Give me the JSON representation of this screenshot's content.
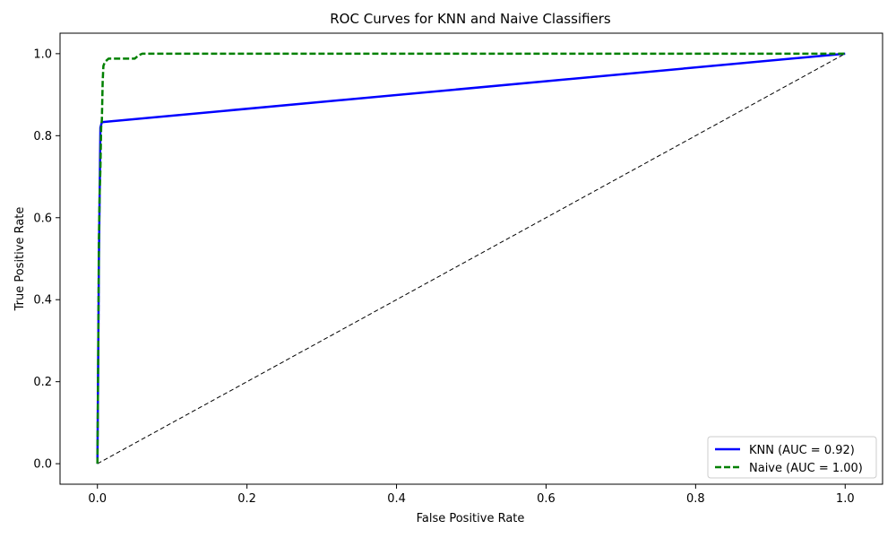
{
  "chart_data": {
    "type": "line",
    "title": "ROC Curves for KNN and Naive Classifiers",
    "xlabel": "False Positive Rate",
    "ylabel": "True Positive Rate",
    "xlim": [
      -0.05,
      1.05
    ],
    "ylim": [
      -0.05,
      1.05
    ],
    "xticks": [
      0.0,
      0.2,
      0.4,
      0.6,
      0.8,
      1.0
    ],
    "yticks": [
      0.0,
      0.2,
      0.4,
      0.6,
      0.8,
      1.0
    ],
    "xtick_labels": [
      "0.0",
      "0.2",
      "0.4",
      "0.6",
      "0.8",
      "1.0"
    ],
    "ytick_labels": [
      "0.0",
      "0.2",
      "0.4",
      "0.6",
      "0.8",
      "1.0"
    ],
    "grid": false,
    "legend_position": "bottom-right",
    "series": [
      {
        "name": "KNN (AUC = 0.92)",
        "color": "#0000ff",
        "style": "solid",
        "x": [
          0.0,
          0.002,
          0.004,
          0.006,
          1.0
        ],
        "y": [
          0.0,
          0.5,
          0.82,
          0.833,
          1.0
        ]
      },
      {
        "name": "Naive (AUC = 1.00)",
        "color": "#008000",
        "style": "dashed",
        "x": [
          0.0,
          0.001,
          0.002,
          0.003,
          0.004,
          0.005,
          0.006,
          0.007,
          0.008,
          0.01,
          0.015,
          0.05,
          0.055,
          0.06,
          0.1,
          1.0
        ],
        "y": [
          0.0,
          0.25,
          0.55,
          0.66,
          0.72,
          0.82,
          0.84,
          0.93,
          0.97,
          0.98,
          0.988,
          0.988,
          0.996,
          1.0,
          1.0,
          1.0
        ]
      },
      {
        "color": "#000000",
        "style": "dashed-thin",
        "x": [
          0.0,
          1.0
        ],
        "y": [
          0.0,
          1.0
        ]
      }
    ]
  }
}
